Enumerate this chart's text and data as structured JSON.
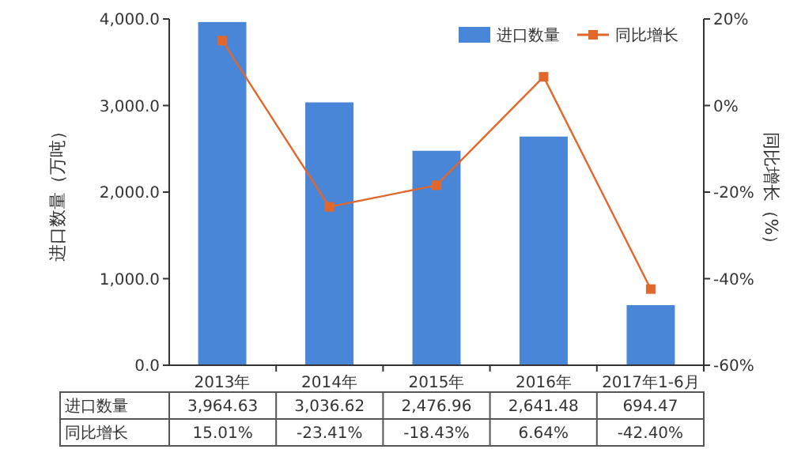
{
  "chart_data": {
    "type": "bar",
    "categories": [
      "2013年",
      "2014年",
      "2015年",
      "2016年",
      "2017年1-6月"
    ],
    "ylabel": "进口数量（万吨）",
    "y2label": "同比增长（%）",
    "series": [
      {
        "name": "进口数量",
        "color": "#4a86d8",
        "values": [
          3964.63,
          3036.62,
          2476.96,
          2641.48,
          694.47
        ],
        "value_labels": [
          "3,964.63",
          "3,036.62",
          "2,476.96",
          "2,641.48",
          "694.47"
        ]
      },
      {
        "name": "同比增长",
        "type": "line",
        "axis": "y2",
        "color": "#e2672c",
        "marker": "square",
        "values": [
          15.01,
          -23.41,
          -18.43,
          6.64,
          -42.4
        ],
        "value_labels": [
          "15.01%",
          "-23.41%",
          "-18.43%",
          "6.64%",
          "-42.40%"
        ]
      }
    ],
    "ylim": [
      0,
      4000
    ],
    "yticks": [
      {
        "value": 0,
        "label": "0.0"
      },
      {
        "value": 1000,
        "label": "1,000.0"
      },
      {
        "value": 2000,
        "label": "2,000.0"
      },
      {
        "value": 3000,
        "label": "3,000.0"
      },
      {
        "value": 4000,
        "label": "4,000.0"
      }
    ],
    "y2lim": [
      -60,
      20
    ],
    "y2ticks": [
      {
        "value": -60,
        "label": "-60%"
      },
      {
        "value": -40,
        "label": "-40%"
      },
      {
        "value": -20,
        "label": "-20%"
      },
      {
        "value": 0,
        "label": "0%"
      },
      {
        "value": 20,
        "label": "20%"
      }
    ],
    "legend": "top right",
    "grid": false
  }
}
